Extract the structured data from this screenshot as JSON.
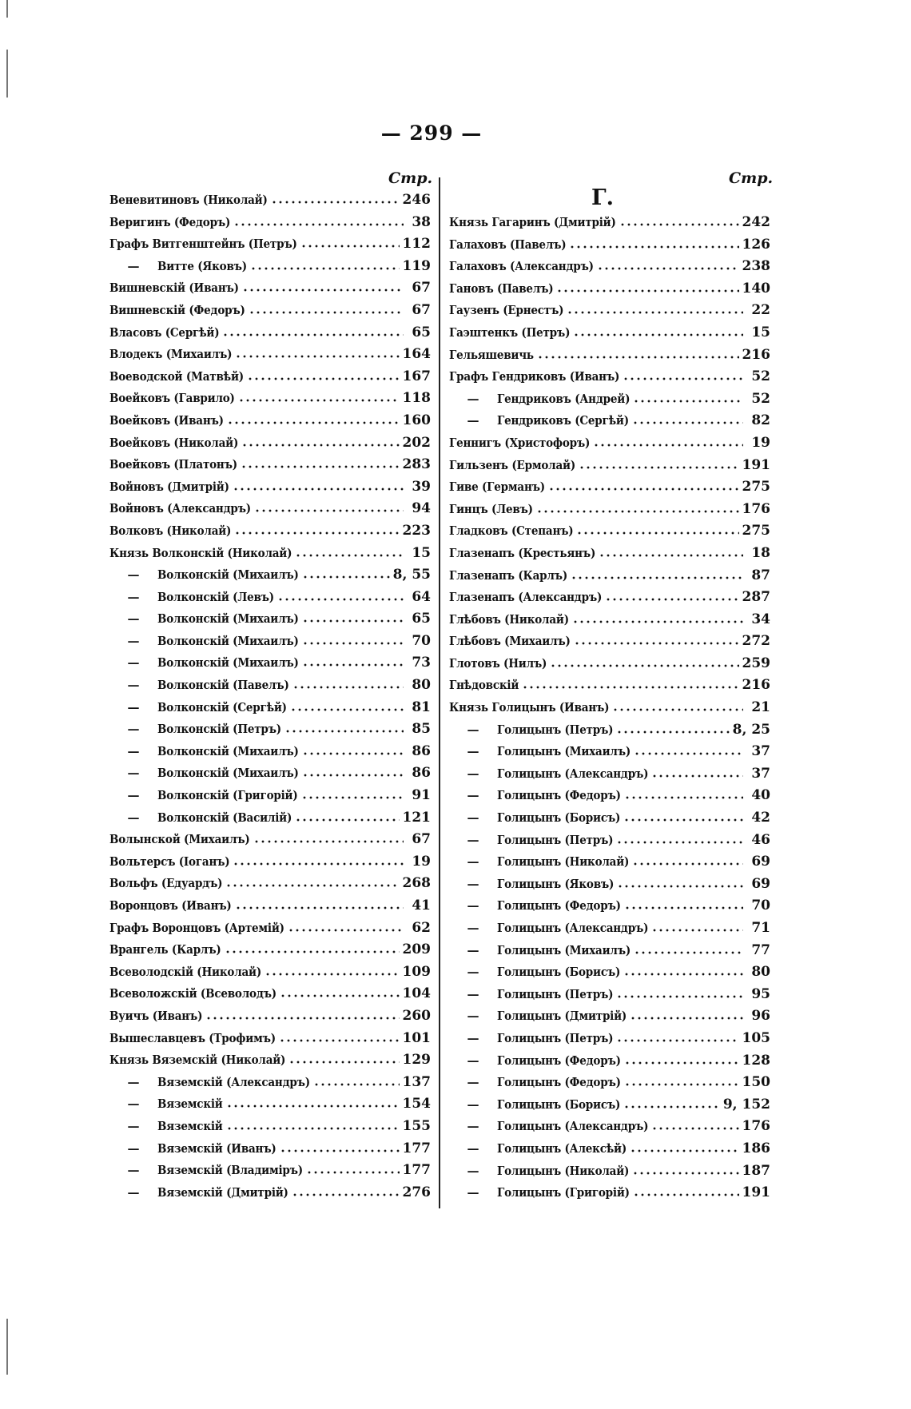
{
  "page_number": "— 299 —",
  "page_column_label": "Стр.",
  "section_letter": "Г.",
  "left_column": [
    {
      "dash": false,
      "name": "Веневитиновъ (Николай)",
      "page": "246"
    },
    {
      "dash": false,
      "name": "Веригинъ (Федоръ)",
      "page": "38"
    },
    {
      "dash": false,
      "name": "Графъ Витгенштейнъ (Петръ)",
      "page": "112"
    },
    {
      "dash": true,
      "name": "Витте (Яковъ)",
      "page": "119"
    },
    {
      "dash": false,
      "name": "Вишневскій (Иванъ)",
      "page": "67"
    },
    {
      "dash": false,
      "name": "Вишневскій (Федоръ)",
      "page": "67"
    },
    {
      "dash": false,
      "name": "Власовъ (Сергѣй)",
      "page": "65"
    },
    {
      "dash": false,
      "name": "Влодекъ (Михаилъ)",
      "page": "164"
    },
    {
      "dash": false,
      "name": "Воеводской (Матвѣй)",
      "page": "167"
    },
    {
      "dash": false,
      "name": "Воейковъ (Гаврило)",
      "page": "118"
    },
    {
      "dash": false,
      "name": "Воейковъ (Иванъ)",
      "page": "160"
    },
    {
      "dash": false,
      "name": "Воейковъ (Николай)",
      "page": "202"
    },
    {
      "dash": false,
      "name": "Воейковъ (Платонъ)",
      "page": "283"
    },
    {
      "dash": false,
      "name": "Войновъ (Дмитрій)",
      "page": "39"
    },
    {
      "dash": false,
      "name": "Войновъ (Александръ)",
      "page": "94"
    },
    {
      "dash": false,
      "name": "Волковъ (Николай)",
      "page": "223"
    },
    {
      "dash": false,
      "name": "Князь Волконскій (Николай)",
      "page": "15"
    },
    {
      "dash": true,
      "name": "Волконскій (Михаилъ)",
      "page": "8,  55"
    },
    {
      "dash": true,
      "name": "Волконскій (Левъ)",
      "page": "64"
    },
    {
      "dash": true,
      "name": "Волконскій (Михаилъ)",
      "page": "65"
    },
    {
      "dash": true,
      "name": "Волконскій (Михаилъ)",
      "page": "70"
    },
    {
      "dash": true,
      "name": "Волконскій (Михаилъ)",
      "page": "73"
    },
    {
      "dash": true,
      "name": "Волконскій (Павелъ)",
      "page": "80"
    },
    {
      "dash": true,
      "name": "Волконскій (Сергѣй)",
      "page": "81"
    },
    {
      "dash": true,
      "name": "Волконскій (Петръ)",
      "page": "85"
    },
    {
      "dash": true,
      "name": "Волконскій (Михаилъ)",
      "page": "86"
    },
    {
      "dash": true,
      "name": "Волконскій (Михаилъ)",
      "page": "86"
    },
    {
      "dash": true,
      "name": "Волконскій (Григорій)",
      "page": "91"
    },
    {
      "dash": true,
      "name": "Волконскій (Василій)",
      "page": "121"
    },
    {
      "dash": false,
      "name": "Волынской (Михаилъ)",
      "page": "67"
    },
    {
      "dash": false,
      "name": "Вольтерсъ (Іоганъ)",
      "page": "19"
    },
    {
      "dash": false,
      "name": "Вольфъ (Едуардъ)",
      "page": "268"
    },
    {
      "dash": false,
      "name": "Воронцовъ (Иванъ)",
      "page": "41"
    },
    {
      "dash": false,
      "name": "Графъ Воронцовъ (Артемій)",
      "page": "62"
    },
    {
      "dash": false,
      "name": "Врангель (Карлъ)",
      "page": "209"
    },
    {
      "dash": false,
      "name": "Всеволодскій (Николай)",
      "page": "109"
    },
    {
      "dash": false,
      "name": "Всеволожскій (Всеволодъ)",
      "page": "104"
    },
    {
      "dash": false,
      "name": "Вуичъ (Иванъ)",
      "page": "260"
    },
    {
      "dash": false,
      "name": "Вышеславцевъ (Трофимъ)",
      "page": "101"
    },
    {
      "dash": false,
      "name": "Князь Вяземскій (Николай)",
      "page": "129"
    },
    {
      "dash": true,
      "name": "Вяземскій (Александръ)",
      "page": "137"
    },
    {
      "dash": true,
      "name": "Вяземскій",
      "page": "154"
    },
    {
      "dash": true,
      "name": "Вяземскій",
      "page": "155"
    },
    {
      "dash": true,
      "name": "Вяземскій (Иванъ)",
      "page": "177"
    },
    {
      "dash": true,
      "name": "Вяземскій (Владиміръ)",
      "page": "177"
    },
    {
      "dash": true,
      "name": "Вяземскій (Дмитрій)",
      "page": "276"
    }
  ],
  "right_column": [
    {
      "dash": false,
      "name": "Князь Гагаринъ (Дмитрій)",
      "page": "242"
    },
    {
      "dash": false,
      "name": "Галаховъ (Павелъ)",
      "page": "126"
    },
    {
      "dash": false,
      "name": "Галаховъ (Александръ)",
      "page": "238"
    },
    {
      "dash": false,
      "name": "Гановъ (Павелъ)",
      "page": "140"
    },
    {
      "dash": false,
      "name": "Гаузенъ (Ернестъ)",
      "page": "22"
    },
    {
      "dash": false,
      "name": "Гаэштенкъ (Петръ)",
      "page": "15"
    },
    {
      "dash": false,
      "name": "Гельяшевичь",
      "page": "216"
    },
    {
      "dash": false,
      "name": "Графъ Гендриковъ (Иванъ)",
      "page": "52"
    },
    {
      "dash": true,
      "name": "Гендриковъ (Андрей)",
      "page": "52"
    },
    {
      "dash": true,
      "name": "Гендриковъ (Сергѣй)",
      "page": "82"
    },
    {
      "dash": false,
      "name": "Геннигъ (Христофоръ)",
      "page": "19"
    },
    {
      "dash": false,
      "name": "Гильзенъ (Ермолай)",
      "page": "191"
    },
    {
      "dash": false,
      "name": "Гиве (Германъ)",
      "page": "275"
    },
    {
      "dash": false,
      "name": "Гинцъ (Левъ)",
      "page": "176"
    },
    {
      "dash": false,
      "name": "Гладковъ (Степанъ)",
      "page": "275"
    },
    {
      "dash": false,
      "name": "Глазенапъ (Крестьянъ)",
      "page": "18"
    },
    {
      "dash": false,
      "name": "Глазенапъ (Карлъ)",
      "page": "87"
    },
    {
      "dash": false,
      "name": "Глазенапъ (Александръ)",
      "page": "287"
    },
    {
      "dash": false,
      "name": "Глѣбовъ (Николай)",
      "page": "34"
    },
    {
      "dash": false,
      "name": "Глѣбовъ (Михаилъ)",
      "page": "272"
    },
    {
      "dash": false,
      "name": "Глотовъ (Нилъ)",
      "page": "259"
    },
    {
      "dash": false,
      "name": "Гнѣдовскій",
      "page": "216"
    },
    {
      "dash": false,
      "name": "Князь Голицынъ (Иванъ)",
      "page": "21"
    },
    {
      "dash": true,
      "name": "Голицынъ (Петръ)",
      "page": "8,  25"
    },
    {
      "dash": true,
      "name": "Голицынъ (Михаилъ)",
      "page": "37"
    },
    {
      "dash": true,
      "name": "Голицынъ (Александръ)",
      "page": "37"
    },
    {
      "dash": true,
      "name": "Голицынъ (Федоръ)",
      "page": "40"
    },
    {
      "dash": true,
      "name": "Голицынъ (Борисъ)",
      "page": "42"
    },
    {
      "dash": true,
      "name": "Голицынъ (Петръ)",
      "page": "46"
    },
    {
      "dash": true,
      "name": "Голицынъ (Николай)",
      "page": "69"
    },
    {
      "dash": true,
      "name": "Голицынъ (Яковъ)",
      "page": "69"
    },
    {
      "dash": true,
      "name": "Голицынъ (Федоръ)",
      "page": "70"
    },
    {
      "dash": true,
      "name": "Голицынъ (Александръ)",
      "page": "71"
    },
    {
      "dash": true,
      "name": "Голицынъ (Михаилъ)",
      "page": "77"
    },
    {
      "dash": true,
      "name": "Голицынъ (Борисъ)",
      "page": "80"
    },
    {
      "dash": true,
      "name": "Голицынъ (Петръ)",
      "page": "95"
    },
    {
      "dash": true,
      "name": "Голицынъ (Дмитрій)",
      "page": "96"
    },
    {
      "dash": true,
      "name": "Голицынъ (Петръ)",
      "page": "105"
    },
    {
      "dash": true,
      "name": "Голицынъ (Федоръ)",
      "page": "128"
    },
    {
      "dash": true,
      "name": "Голицынъ (Федоръ)",
      "page": "150"
    },
    {
      "dash": true,
      "name": "Голицынъ (Борисъ)",
      "page": "9,  152"
    },
    {
      "dash": true,
      "name": "Голицынъ (Александръ)",
      "page": "176"
    },
    {
      "dash": true,
      "name": "Голицынъ (Алексѣй)",
      "page": "186"
    },
    {
      "dash": true,
      "name": "Голицынъ (Николай)",
      "page": "187"
    },
    {
      "dash": true,
      "name": "Голицынъ (Григорій)",
      "page": "191"
    }
  ],
  "dash_glyph": "—"
}
